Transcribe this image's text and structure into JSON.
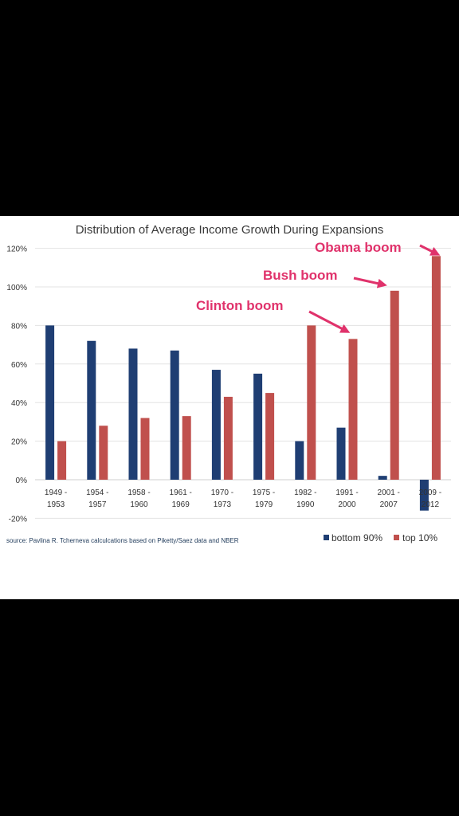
{
  "colors": {
    "bottom_90": "#1f3e73",
    "top_10": "#c0504d",
    "annotation": "#e0326b"
  },
  "chart_data": {
    "type": "bar",
    "title": "Distribution of Average Income Growth During Expansions",
    "categories": [
      [
        "1949 -",
        "1953"
      ],
      [
        "1954 -",
        "1957"
      ],
      [
        "1958 -",
        "1960"
      ],
      [
        "1961 -",
        "1969"
      ],
      [
        "1970 -",
        "1973"
      ],
      [
        "1975 -",
        "1979"
      ],
      [
        "1982 -",
        "1990"
      ],
      [
        "1991 -",
        "2000"
      ],
      [
        "2001 -",
        "2007"
      ],
      [
        "2009 -",
        "2012"
      ]
    ],
    "series": [
      {
        "name": "bottom 90%",
        "values": [
          80,
          72,
          68,
          67,
          57,
          55,
          20,
          27,
          2,
          -16
        ]
      },
      {
        "name": "top 10%",
        "values": [
          20,
          28,
          32,
          33,
          43,
          45,
          80,
          73,
          98,
          116
        ]
      }
    ],
    "ylim": [
      -20,
      120
    ],
    "yticks": [
      -20,
      0,
      20,
      40,
      60,
      80,
      100,
      120
    ],
    "ytick_labels": [
      "-20%",
      "0%",
      "20%",
      "40%",
      "60%",
      "80%",
      "100%",
      "120%"
    ],
    "grid": true,
    "legend": "bottom-right",
    "source": "source: Pavlina R. Tcherneva calculcations based on Piketty/Saez data and NBER",
    "annotations": [
      {
        "text": "Obama boom",
        "category_index": 9
      },
      {
        "text": "Bush boom",
        "category_index": 8
      },
      {
        "text": "Clinton boom",
        "category_index": 7
      }
    ]
  }
}
